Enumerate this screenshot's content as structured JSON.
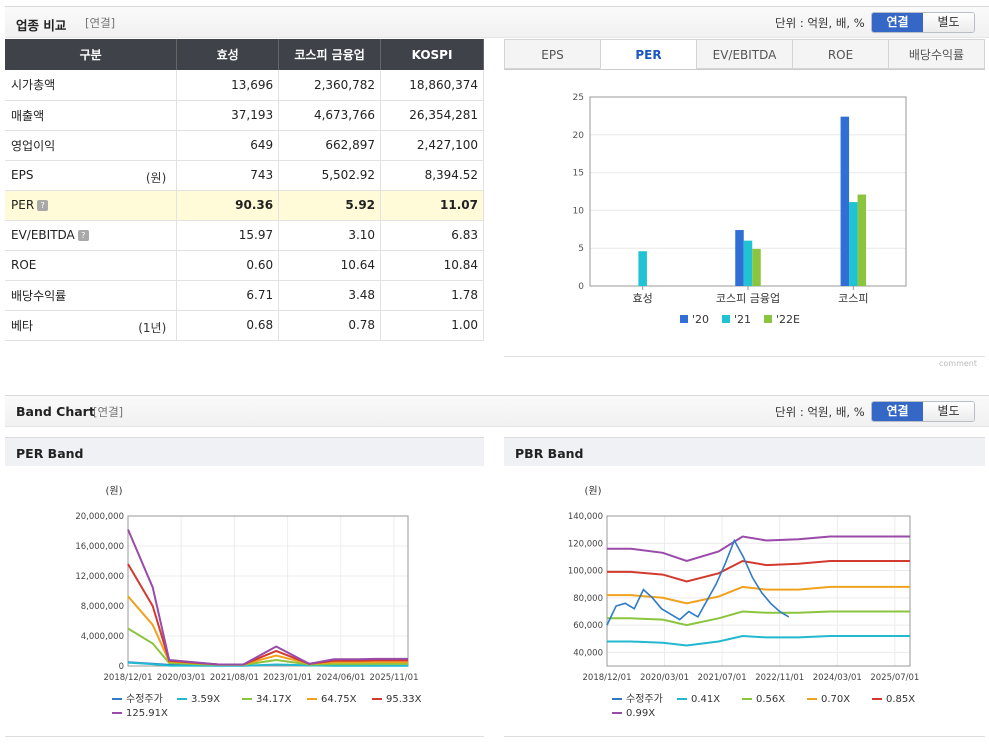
{
  "compare": {
    "title": "업종 비교",
    "subtitle": "[연결]",
    "unit": "단위 : 억원, 배, %",
    "toggle": {
      "on": "연결",
      "off": "별도"
    },
    "headers": [
      "구분",
      "효성",
      "코스피 금융업",
      "KOSPI"
    ],
    "rows": [
      {
        "label": "시가총액",
        "note": "",
        "q": false,
        "values": [
          "13,696",
          "2,360,782",
          "18,860,374"
        ]
      },
      {
        "label": "매출액",
        "note": "",
        "q": false,
        "values": [
          "37,193",
          "4,673,766",
          "26,354,281"
        ]
      },
      {
        "label": "영업이익",
        "note": "",
        "q": false,
        "values": [
          "649",
          "662,897",
          "2,427,100"
        ]
      },
      {
        "label": "EPS",
        "note": "(원)",
        "q": false,
        "values": [
          "743",
          "5,502.92",
          "8,394.52"
        ]
      },
      {
        "label": "PER",
        "note": "",
        "q": true,
        "values": [
          "90.36",
          "5.92",
          "11.07"
        ]
      },
      {
        "label": "EV/EBITDA",
        "note": "",
        "q": true,
        "values": [
          "15.97",
          "3.10",
          "6.83"
        ]
      },
      {
        "label": "ROE",
        "note": "",
        "q": false,
        "values": [
          "0.60",
          "10.64",
          "10.84"
        ]
      },
      {
        "label": "배당수익률",
        "note": "",
        "q": false,
        "values": [
          "6.71",
          "3.48",
          "1.78"
        ]
      },
      {
        "label": "베타",
        "note": "(1년)",
        "q": false,
        "values": [
          "0.68",
          "0.78",
          "1.00"
        ]
      }
    ],
    "highlight_row": 4,
    "tabs": [
      "EPS",
      "PER",
      "EV/EBITDA",
      "ROE",
      "배당수익률"
    ],
    "active_tab": 1,
    "comment": "comment"
  },
  "band": {
    "title": "Band Chart",
    "subtitle": "[연결]",
    "unit": "단위 : 억원, 배, %",
    "toggle": {
      "on": "연결",
      "off": "별도"
    },
    "per_title": "PER Band",
    "pbr_title": "PBR Band"
  },
  "chart_data": [
    {
      "type": "bar",
      "categories": [
        "효성",
        "코스피 금융업",
        "코스피"
      ],
      "series": [
        {
          "name": "'20",
          "values": [
            null,
            7.4,
            22.4
          ]
        },
        {
          "name": "'21",
          "values": [
            4.6,
            6.0,
            11.1
          ]
        },
        {
          "name": "'22E",
          "values": [
            null,
            4.9,
            12.1
          ]
        }
      ],
      "ylim": [
        0,
        25
      ],
      "yticks": [
        0,
        5,
        10,
        15,
        20,
        25
      ],
      "colors": [
        "#2f6fd6",
        "#1fc3d4",
        "#8bc53f"
      ],
      "legend": "bottom"
    },
    {
      "type": "line",
      "title": "PER Band",
      "ylabel": "(원)",
      "yticks": [
        "0",
        "4,000,000",
        "8,000,000",
        "12,000,000",
        "16,000,000",
        "20,000,000"
      ],
      "ylim": [
        0,
        20000000
      ],
      "xticks": [
        "2018/12/01",
        "2020/03/01",
        "2021/08/01",
        "2023/01/01",
        "2024/06/01",
        "2025/11/01"
      ],
      "x_index": [
        0,
        3,
        5,
        11,
        14,
        18,
        22,
        25,
        28,
        30,
        34
      ],
      "series": [
        {
          "name": "수정주가",
          "color": "#2f7bc8",
          "values": [
            500000,
            300000,
            150000,
            100000,
            100000,
            null,
            null,
            null,
            null,
            null,
            null
          ]
        },
        {
          "name": "3.59X",
          "color": "#22b8cf",
          "values": [
            450000,
            250000,
            50000,
            20000,
            20000,
            200000,
            80000,
            30000,
            30000,
            40000,
            40000
          ]
        },
        {
          "name": "34.17X",
          "color": "#8bc53f",
          "values": [
            5000000,
            3000000,
            400000,
            150000,
            150000,
            800000,
            200000,
            250000,
            250000,
            280000,
            280000
          ]
        },
        {
          "name": "64.75X",
          "color": "#f0a21f",
          "values": [
            9300000,
            5500000,
            600000,
            200000,
            200000,
            1400000,
            300000,
            480000,
            480000,
            500000,
            500000
          ]
        },
        {
          "name": "95.33X",
          "color": "#d23a2e",
          "values": [
            13600000,
            8000000,
            700000,
            200000,
            200000,
            2000000,
            300000,
            700000,
            700000,
            750000,
            750000
          ]
        },
        {
          "name": "125.91X",
          "color": "#9a4aa8",
          "values": [
            18200000,
            10500000,
            800000,
            200000,
            200000,
            2600000,
            300000,
            900000,
            900000,
            950000,
            950000
          ]
        }
      ],
      "legend": "bottom"
    },
    {
      "type": "line",
      "title": "PBR Band",
      "ylabel": "(원)",
      "yticks": [
        "40,000",
        "60,000",
        "80,000",
        "100,000",
        "120,000",
        "140,000"
      ],
      "ylim": [
        30000,
        140000
      ],
      "xticks": [
        "2018/12/01",
        "2020/03/01",
        "2021/07/01",
        "2022/11/01",
        "2024/03/01",
        "2025/07/01"
      ],
      "x_index": [
        0,
        3,
        7,
        10,
        14,
        17,
        20,
        24,
        28,
        33,
        38
      ],
      "series": [
        {
          "name": "0.41X",
          "color": "#22b8cf",
          "values": [
            48000,
            48000,
            47000,
            45000,
            48000,
            52000,
            51000,
            51000,
            52000,
            52000,
            52000
          ]
        },
        {
          "name": "0.56X",
          "color": "#8bc53f",
          "values": [
            65000,
            65000,
            64000,
            60000,
            65000,
            70000,
            69000,
            69000,
            70000,
            70000,
            70000
          ]
        },
        {
          "name": "0.70X",
          "color": "#f0a21f",
          "values": [
            82000,
            82000,
            80000,
            76000,
            81000,
            88000,
            86000,
            86000,
            88000,
            88000,
            88000
          ]
        },
        {
          "name": "0.85X",
          "color": "#d23a2e",
          "values": [
            99000,
            99000,
            97000,
            92000,
            98000,
            107000,
            104000,
            105000,
            107000,
            107000,
            107000
          ]
        },
        {
          "name": "0.99X",
          "color": "#9a4aa8",
          "values": [
            116000,
            116000,
            113000,
            107000,
            114000,
            125000,
            122000,
            123000,
            125000,
            125000,
            125000
          ]
        }
      ],
      "price": {
        "name": "수정주가",
        "color": "#2f7bc8",
        "x_index": [
          0,
          1,
          2,
          3,
          4,
          5,
          6,
          7,
          8,
          9,
          10,
          11,
          12,
          13,
          14,
          15,
          16,
          17,
          18,
          19,
          20
        ],
        "values": [
          60000,
          74000,
          76000,
          72000,
          86000,
          80000,
          72000,
          68000,
          64000,
          70000,
          66000,
          78000,
          90000,
          105000,
          122000,
          110000,
          95000,
          84000,
          76000,
          70000,
          66000
        ]
      },
      "legend": "bottom"
    }
  ]
}
